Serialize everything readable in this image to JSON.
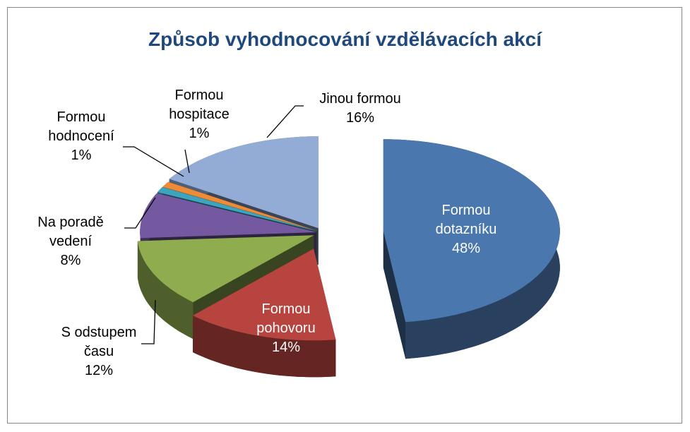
{
  "chart_data": {
    "type": "pie",
    "title": "Způsob vyhodnocování vzdělávacích akcí",
    "categories": [
      "Formou dotazníku",
      "Formou pohovoru",
      "S odstupem času",
      "Na poradě vedení",
      "Formou hodnocení",
      "Formou hospitace",
      "Jinou formou"
    ],
    "values": [
      48,
      14,
      12,
      8,
      1,
      1,
      16
    ],
    "value_labels": [
      "48%",
      "14%",
      "12%",
      "8%",
      "1%",
      "1%",
      "16%"
    ],
    "colors": [
      "#4a77ad",
      "#b8443f",
      "#8fad4f",
      "#7459a0",
      "#3ea3bd",
      "#ef8a35",
      "#93acd6"
    ]
  }
}
